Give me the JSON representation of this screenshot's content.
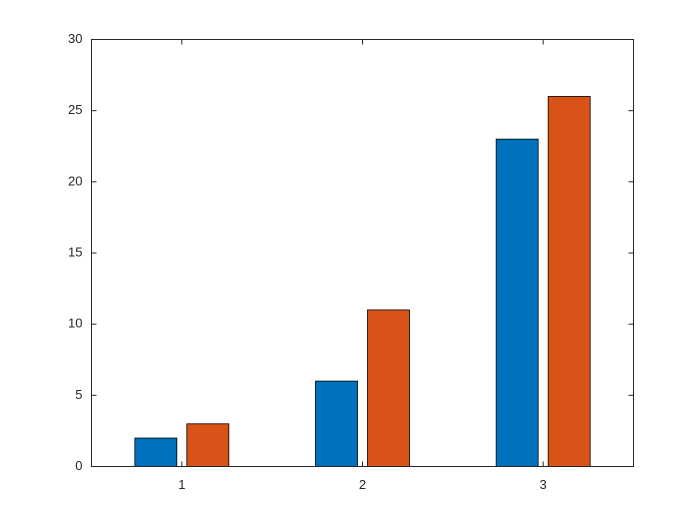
{
  "chart_data": {
    "type": "bar",
    "categories": [
      "1",
      "2",
      "3"
    ],
    "series": [
      {
        "color": "#0072bd",
        "values": [
          2,
          6,
          23
        ]
      },
      {
        "color": "#d95319",
        "values": [
          3,
          11,
          26
        ]
      }
    ],
    "ylim": [
      0,
      30
    ],
    "yticks": [
      0,
      5,
      10,
      15,
      20,
      25,
      30
    ],
    "grid": false
  }
}
